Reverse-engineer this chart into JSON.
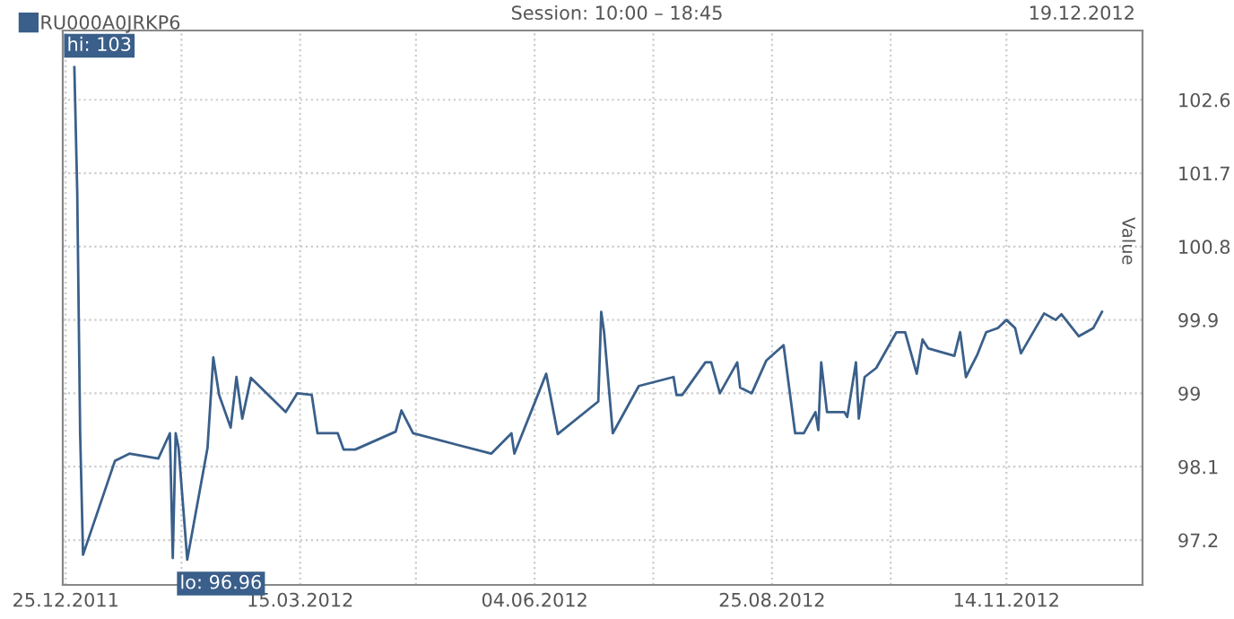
{
  "chart_data": {
    "type": "line",
    "ylabel": "Value",
    "annotations": [
      "Session: 10:00 – 18:45",
      "19.12.2012",
      {
        "text": "hi: 103",
        "x": "2011-12-28",
        "y": 103
      },
      {
        "text": "lo: 96.96",
        "x": "2012-02-05",
        "y": 96.96
      }
    ],
    "x": [
      "2011-12-28",
      "2011-12-29",
      "2011-12-30",
      "2011-12-31",
      "2012-01-11",
      "2012-01-16",
      "2012-01-26",
      "2012-01-30",
      "2012-01-31",
      "2012-02-01",
      "2012-02-02",
      "2012-02-05",
      "2012-02-12",
      "2012-02-14",
      "2012-02-16",
      "2012-02-20",
      "2012-02-22",
      "2012-02-24",
      "2012-02-27",
      "2012-03-10",
      "2012-03-14",
      "2012-03-19",
      "2012-03-21",
      "2012-03-28",
      "2012-03-30",
      "2012-04-03",
      "2012-04-17",
      "2012-04-19",
      "2012-04-23",
      "2012-05-20",
      "2012-05-27",
      "2012-05-28",
      "2012-06-08",
      "2012-06-12",
      "2012-06-26",
      "2012-06-27",
      "2012-06-28",
      "2012-07-01",
      "2012-07-10",
      "2012-07-22",
      "2012-07-23",
      "2012-07-25",
      "2012-08-02",
      "2012-08-04",
      "2012-08-07",
      "2012-08-13",
      "2012-08-14",
      "2012-08-18",
      "2012-08-23",
      "2012-08-29",
      "2012-09-02",
      "2012-09-05",
      "2012-09-09",
      "2012-09-10",
      "2012-09-11",
      "2012-09-13",
      "2012-09-19",
      "2012-09-20",
      "2012-09-23",
      "2012-09-24",
      "2012-09-26",
      "2012-09-30",
      "2012-10-07",
      "2012-10-10",
      "2012-10-14",
      "2012-10-16",
      "2012-10-18",
      "2012-10-27",
      "2012-10-29",
      "2012-10-31",
      "2012-11-04",
      "2012-11-07",
      "2012-11-11",
      "2012-11-14",
      "2012-11-17",
      "2012-11-19",
      "2012-11-27",
      "2012-12-01",
      "2012-12-03",
      "2012-12-09",
      "2012-12-14",
      "2012-12-17"
    ],
    "series": [
      {
        "name": "RU000A0JRKP6",
        "color": "#3a5f8a",
        "values": [
          103,
          101.46,
          98.51,
          97.02,
          98.17,
          98.26,
          98.2,
          98.51,
          96.98,
          98.51,
          98.33,
          96.96,
          98.33,
          99.44,
          98.98,
          98.58,
          99.2,
          98.69,
          99.19,
          98.77,
          99.0,
          98.98,
          98.51,
          98.51,
          98.31,
          98.31,
          98.53,
          98.79,
          98.51,
          98.26,
          98.51,
          98.26,
          99.24,
          98.5,
          98.9,
          100.0,
          99.75,
          98.51,
          99.09,
          99.2,
          98.98,
          98.98,
          99.38,
          99.38,
          99.0,
          99.38,
          99.07,
          99.0,
          99.4,
          99.59,
          98.51,
          98.51,
          98.77,
          98.55,
          99.38,
          98.77,
          98.77,
          98.71,
          99.38,
          98.69,
          99.2,
          99.31,
          99.75,
          99.75,
          99.24,
          99.66,
          99.55,
          99.46,
          99.75,
          99.2,
          99.48,
          99.75,
          99.8,
          99.9,
          99.8,
          99.49,
          99.98,
          99.9,
          99.97,
          99.7,
          99.8,
          100.0
        ]
      }
    ],
    "xlim": [
      "2011-12-24",
      "2012-12-31"
    ],
    "xticks": [
      {
        "value": "2011-12-25",
        "label": "25.12.2011"
      },
      {
        "value": "2012-02-03",
        "label": null
      },
      {
        "value": "2012-03-15",
        "label": "15.03.2012"
      },
      {
        "value": "2012-04-24",
        "label": null
      },
      {
        "value": "2012-06-04",
        "label": "04.06.2012"
      },
      {
        "value": "2012-07-15",
        "label": null
      },
      {
        "value": "2012-08-25",
        "label": "25.08.2012"
      },
      {
        "value": "2012-10-05",
        "label": null
      },
      {
        "value": "2012-11-14",
        "label": "14.11.2012"
      }
    ],
    "ylim": [
      96.65,
      103.45
    ],
    "yticks": [
      97.2,
      98.1,
      99,
      99.9,
      100.8,
      101.7,
      102.6
    ],
    "grid": true,
    "legend": "top left",
    "marker": "none",
    "line_style": "solid"
  }
}
